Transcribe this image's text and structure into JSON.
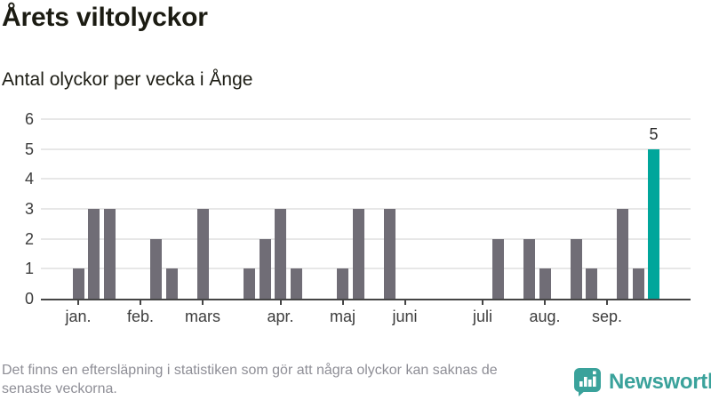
{
  "page": {
    "title": "Årets viltolyckor",
    "subtitle": "Antal olyckor per vecka i Ånge",
    "footer_line1": "Det finns en eftersläpning i statistiken som gör att några olyckor kan saknas de",
    "footer_line2": "senaste veckorna.",
    "brand": "Newsworthy"
  },
  "colors": {
    "bar": "#706d76",
    "highlight": "#00a69b",
    "grid": "#e7e7e7",
    "axis": "#454545",
    "tick_text": "#3d3d3d",
    "value_label": "#2b2b2b",
    "footer_text": "#8e8e96",
    "brand_teal": "#3aa29b"
  },
  "chart_data": {
    "type": "bar",
    "title": "Årets viltolyckor",
    "subtitle": "Antal olyckor per vecka i Ånge",
    "xlabel": "",
    "ylabel": "",
    "x_unit": "week",
    "ylim": [
      0,
      6
    ],
    "yticks": [
      0,
      1,
      2,
      3,
      4,
      5,
      6
    ],
    "grid": "horizontal",
    "legend": "none",
    "values": [
      0,
      1,
      3,
      3,
      0,
      0,
      2,
      1,
      0,
      3,
      0,
      0,
      1,
      2,
      3,
      1,
      0,
      0,
      1,
      3,
      0,
      3,
      0,
      0,
      0,
      0,
      0,
      0,
      2,
      0,
      2,
      1,
      0,
      2,
      1,
      0,
      3,
      1,
      5,
      0,
      0
    ],
    "highlight_index": 38,
    "highlight_label": "5",
    "month_ticks": [
      {
        "label": "jan.",
        "week": 1
      },
      {
        "label": "feb.",
        "week": 5
      },
      {
        "label": "mars",
        "week": 9
      },
      {
        "label": "apr.",
        "week": 14
      },
      {
        "label": "maj",
        "week": 18
      },
      {
        "label": "juni",
        "week": 22
      },
      {
        "label": "juli",
        "week": 27
      },
      {
        "label": "aug.",
        "week": 31
      },
      {
        "label": "sep.",
        "week": 35
      }
    ]
  }
}
